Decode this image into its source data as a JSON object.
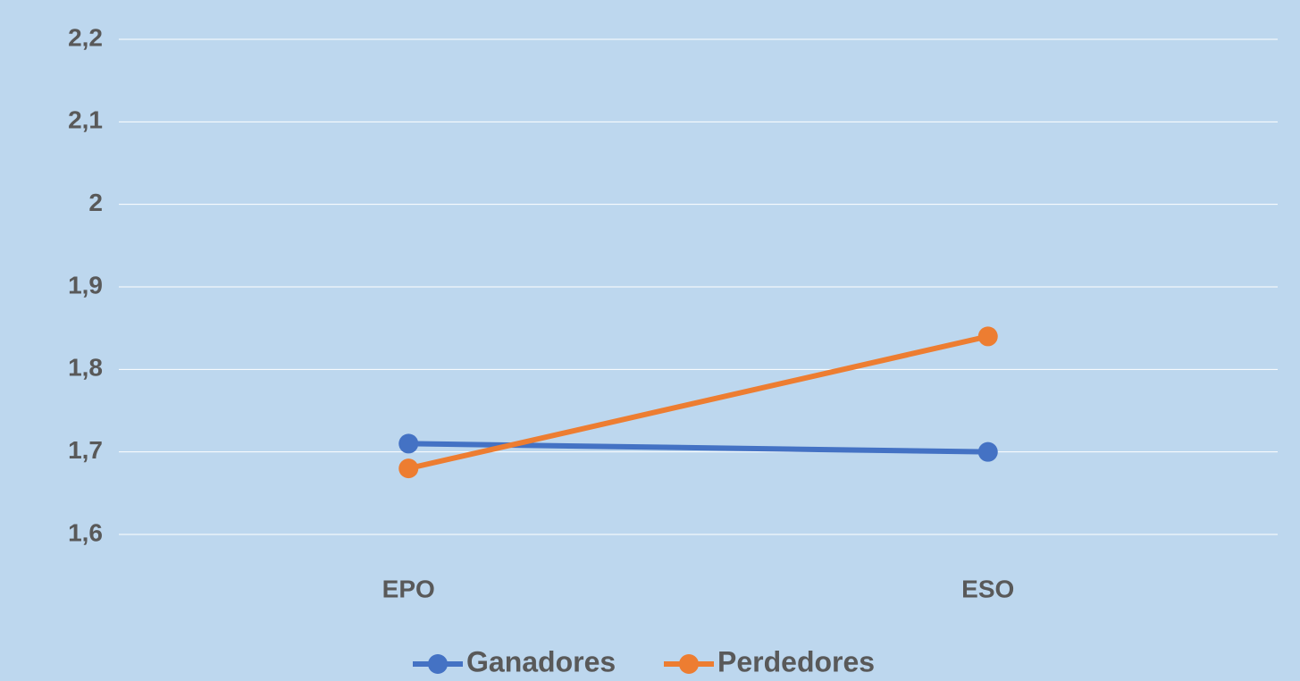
{
  "chart_data": {
    "type": "line",
    "categories": [
      "EPO",
      "ESO"
    ],
    "series": [
      {
        "name": "Ganadores",
        "color": "#4472c4",
        "values": [
          1.71,
          1.7
        ]
      },
      {
        "name": "Perdedores",
        "color": "#ed7d31",
        "values": [
          1.68,
          1.84
        ]
      }
    ],
    "ylim": [
      1.6,
      2.2
    ],
    "yticks": [
      {
        "value": 1.6,
        "label": "1,6"
      },
      {
        "value": 1.7,
        "label": "1,7"
      },
      {
        "value": 1.8,
        "label": "1,8"
      },
      {
        "value": 1.9,
        "label": "1,9"
      },
      2,
      {
        "value": 2.1,
        "label": "2,1"
      },
      {
        "value": 2.2,
        "label": "2,2"
      }
    ],
    "grid": true,
    "legend": "bottom",
    "background": "#bdd7ee"
  }
}
